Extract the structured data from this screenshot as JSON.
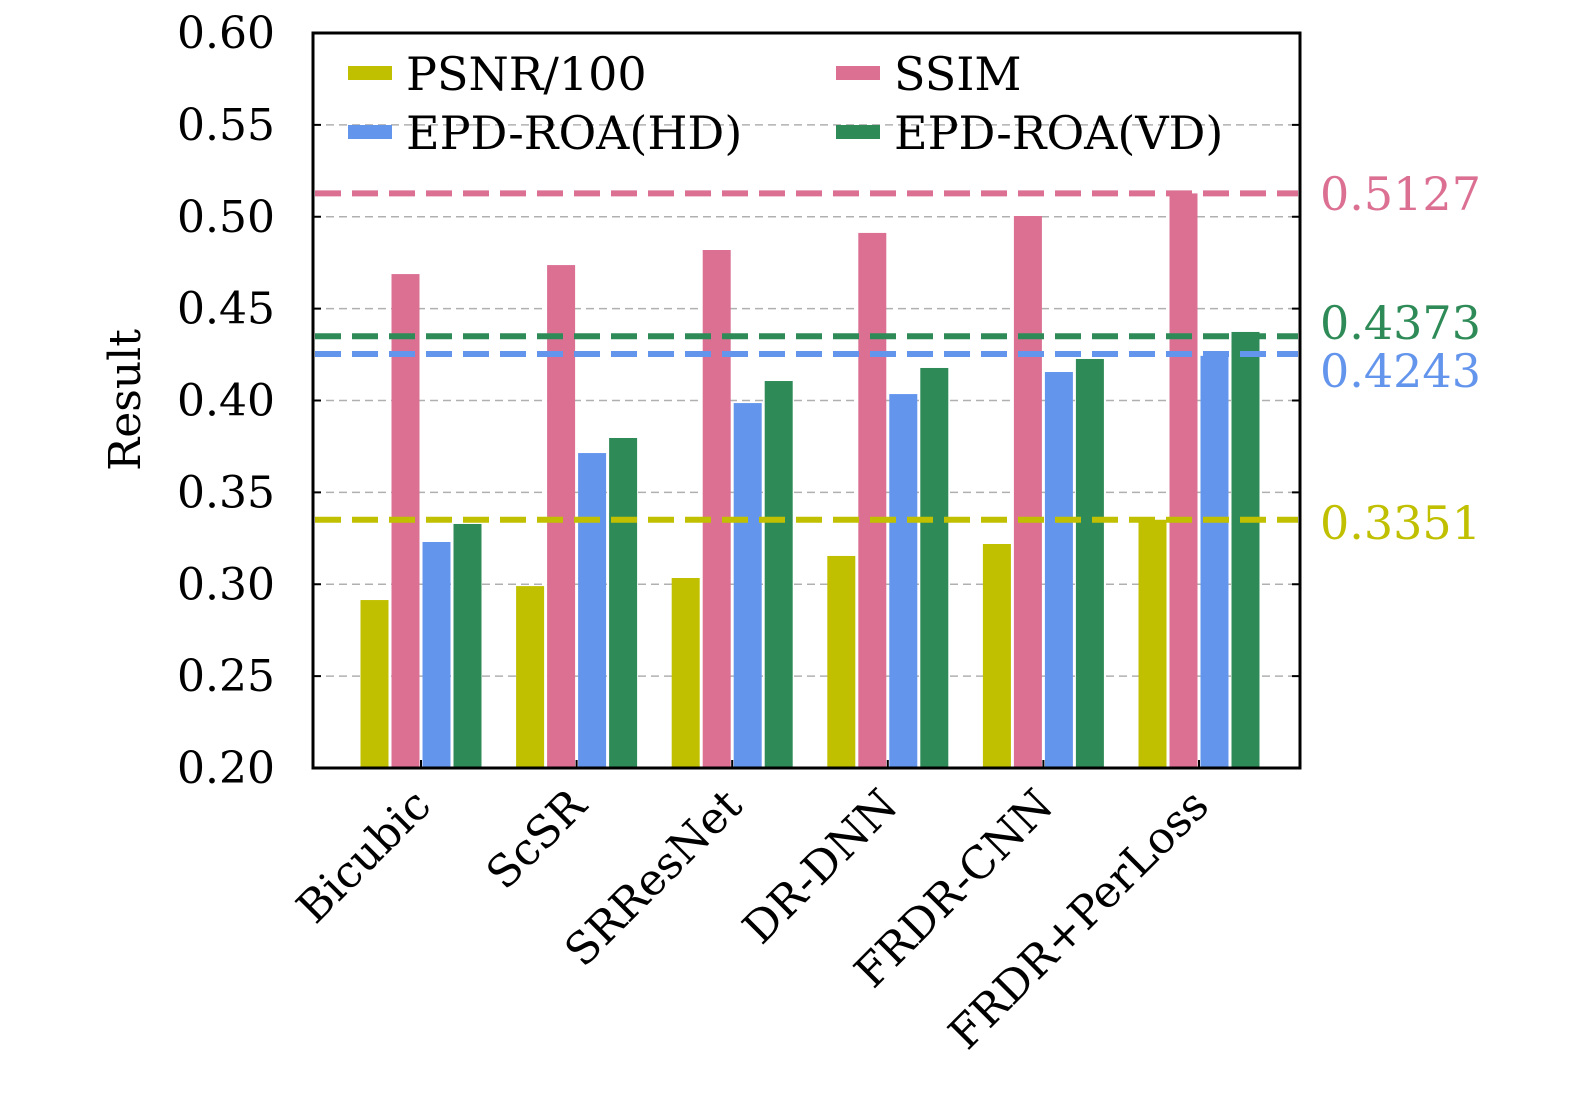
{
  "chart_data": {
    "type": "bar",
    "title": "",
    "xlabel": "",
    "ylabel": "Result",
    "ylim": [
      0.2,
      0.6
    ],
    "yticks": [
      "0.20",
      "0.25",
      "0.30",
      "0.35",
      "0.40",
      "0.45",
      "0.50",
      "0.55",
      "0.60"
    ],
    "grid": true,
    "legend_position": "top",
    "categories": [
      "Bicubic",
      "ScSR",
      "SRResNet",
      "DR-DNN",
      "FRDR-CNN",
      "FRDR+PerLoss"
    ],
    "series": [
      {
        "name": "PSNR/100",
        "color": "#c0c000",
        "values": [
          0.2914,
          0.299,
          0.3034,
          0.3154,
          0.3219,
          0.3351
        ]
      },
      {
        "name": "SSIM",
        "color": "#db7093",
        "values": [
          0.4688,
          0.4737,
          0.4819,
          0.4912,
          0.5004,
          0.5127
        ]
      },
      {
        "name": "EPD-ROA(HD)",
        "color": "#6495ed",
        "values": [
          0.323,
          0.3714,
          0.3986,
          0.4035,
          0.4155,
          0.4243
        ]
      },
      {
        "name": "EPD-ROA(VD)",
        "color": "#2e8b57",
        "values": [
          0.3328,
          0.3796,
          0.4106,
          0.4177,
          0.4226,
          0.4373
        ]
      }
    ],
    "reference_lines": [
      {
        "series": "SSIM",
        "value": 0.5127,
        "label": "0.5127",
        "color": "#db7093"
      },
      {
        "series": "EPD-ROA(VD)",
        "value": 0.4373,
        "label": "0.4373",
        "color": "#2e8b57"
      },
      {
        "series": "EPD-ROA(HD)",
        "value": 0.4243,
        "label": "0.4243",
        "color": "#6495ed"
      },
      {
        "series": "PSNR/100",
        "value": 0.3351,
        "label": "0.3351",
        "color": "#c0c000"
      }
    ]
  }
}
